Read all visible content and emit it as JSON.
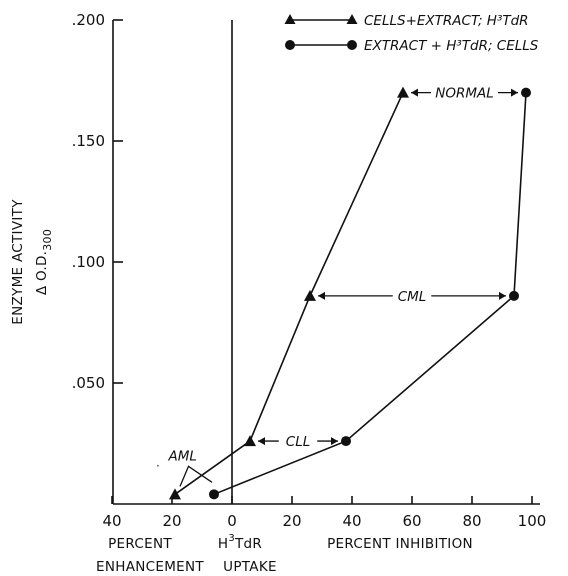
{
  "chart_data": {
    "type": "line",
    "ylabel_line1": "ENZYME ACTIVITY",
    "ylabel_line2": "Δ O.D.",
    "ylabel_sub": "300",
    "ylim": [
      0,
      0.2
    ],
    "yticks": [
      0.05,
      0.1,
      0.15,
      0.2
    ],
    "ytick_labels": [
      ".050",
      ".100",
      ".150",
      ".200"
    ],
    "xlim": [
      -40,
      100
    ],
    "xticks": [
      -40,
      -20,
      0,
      20,
      40,
      60,
      80,
      100
    ],
    "xtick_labels": [
      "40",
      "20",
      "0",
      "20",
      "40",
      "60",
      "80",
      "100"
    ],
    "xlabel_left_line1": "PERCENT",
    "xlabel_left_line2": "ENHANCEMENT",
    "xlabel_center_line1a": "H",
    "xlabel_center_sup": "3",
    "xlabel_center_line1b": "TdR",
    "xlabel_center_line2": "UPTAKE",
    "xlabel_right": "PERCENT INHIBITION",
    "grid": false,
    "legend_position": "top-right",
    "series": [
      {
        "name": "CELLS+EXTRACT; H³TdR",
        "marker": "triangle",
        "points": [
          {
            "x": -19,
            "y": 0.004
          },
          {
            "x": 6,
            "y": 0.026
          },
          {
            "x": 26,
            "y": 0.086
          },
          {
            "x": 57,
            "y": 0.17
          }
        ]
      },
      {
        "name": "EXTRACT + H³TdR; CELLS",
        "marker": "circle",
        "points": [
          {
            "x": -6,
            "y": 0.004
          },
          {
            "x": 38,
            "y": 0.026
          },
          {
            "x": 94,
            "y": 0.086
          },
          {
            "x": 98,
            "y": 0.17
          }
        ]
      }
    ],
    "annotations": [
      {
        "label": "NORMAL",
        "from_x": 57,
        "to_x": 98,
        "y": 0.17
      },
      {
        "label": "CML",
        "from_x": 26,
        "to_x": 94,
        "y": 0.086
      },
      {
        "label": "CLL",
        "from_x": 6,
        "to_x": 38,
        "y": 0.026
      },
      {
        "label": "AML",
        "from_x": -19,
        "to_x": -6,
        "y": 0.004
      }
    ]
  }
}
